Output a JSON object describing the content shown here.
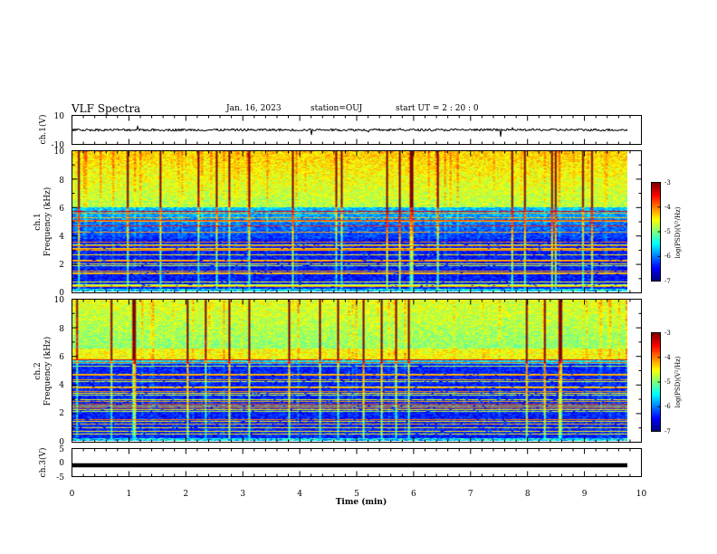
{
  "header": {
    "title": "VLF Spectra",
    "date": "Jan. 16, 2023",
    "station": "station=OUJ",
    "start": "start UT =  2 : 20 : 0"
  },
  "chart_data": [
    {
      "type": "line",
      "panel": "ch1-waveform",
      "ylabel": "ch.1(V)",
      "ylim": [
        -10,
        10
      ],
      "yticks": [
        "10",
        "-10"
      ],
      "xlim": [
        0,
        10
      ],
      "series": [
        {
          "values_description": "noisy baseline near 0 V",
          "y_mean": 0
        }
      ]
    },
    {
      "type": "heatmap",
      "panel": "ch1-spectrogram",
      "ylabel_top": "ch.1",
      "ylabel": "Frequency (kHz)",
      "ylim": [
        0,
        10
      ],
      "yticks": [
        "0",
        "2",
        "4",
        "6",
        "8",
        "10"
      ],
      "xlim": [
        0,
        9.8
      ],
      "colorbar": {
        "label": "log(PSD)(V²/Hz)",
        "range": [
          -7,
          -3
        ],
        "ticks": [
          "-3",
          "-4",
          "-5",
          "-6",
          "-7"
        ]
      }
    },
    {
      "type": "heatmap",
      "panel": "ch2-spectrogram",
      "ylabel_top": "ch.2",
      "ylabel": "Frequency (kHz)",
      "ylim": [
        0,
        10
      ],
      "yticks": [
        "0",
        "2",
        "4",
        "6",
        "8",
        "10"
      ],
      "xlim": [
        0,
        9.8
      ],
      "colorbar": {
        "label": "log(PSD)(V²/Hz)",
        "range": [
          -7,
          -3
        ],
        "ticks": [
          "-3",
          "-4",
          "-5",
          "-6",
          "-7"
        ]
      }
    },
    {
      "type": "line",
      "panel": "ch3-waveform",
      "ylabel": "ch.3(V)",
      "ylim": [
        -5,
        5
      ],
      "yticks": [
        "5",
        "0",
        "-5"
      ],
      "xlim": [
        0,
        10
      ],
      "series": [
        {
          "values_description": "flat thick trace",
          "y_mean": -1
        }
      ]
    }
  ],
  "xaxis": {
    "label": "Time (min)",
    "ticks": [
      "0",
      "1",
      "2",
      "3",
      "4",
      "5",
      "6",
      "7",
      "8",
      "9",
      "10"
    ]
  },
  "colors": {
    "trace": "#000000",
    "colormap": [
      "#00007f",
      "#0000ff",
      "#00b4ff",
      "#00ffb4",
      "#00ff00",
      "#b4ff00",
      "#ffb400",
      "#ff0000",
      "#7f0000"
    ]
  }
}
